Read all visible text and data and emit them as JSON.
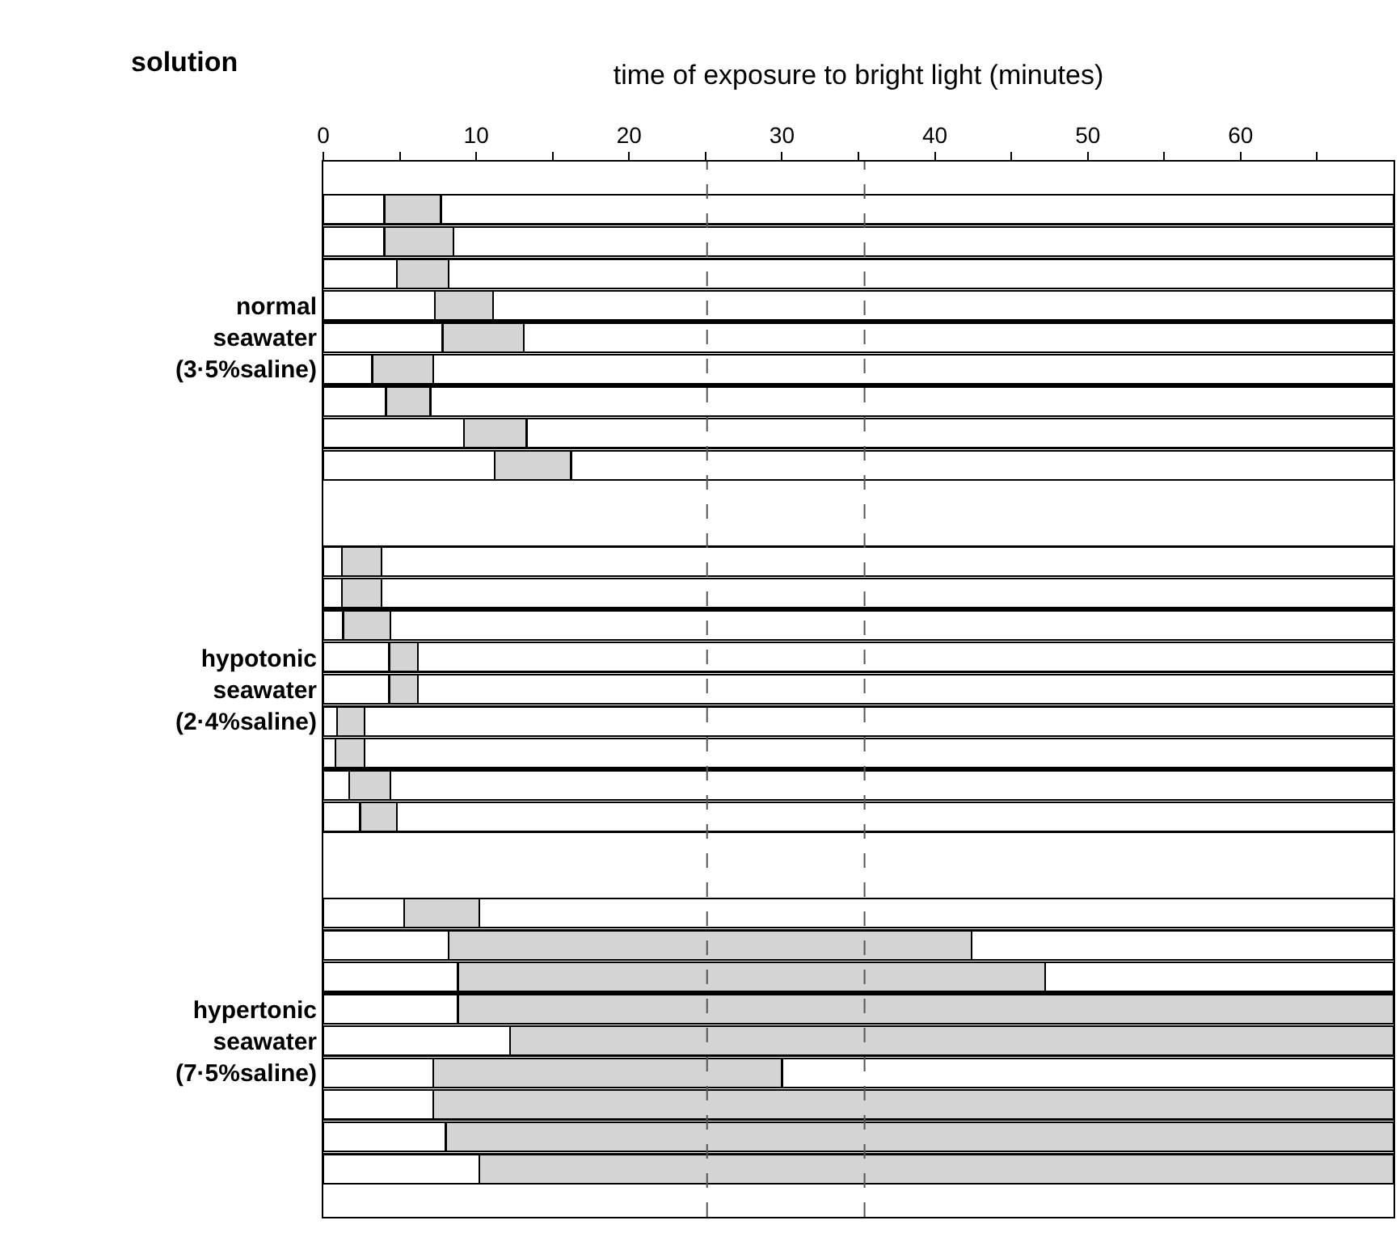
{
  "chart_data": {
    "type": "bar",
    "orientation": "horizontal",
    "stacked": true,
    "xlabel": "time of exposure to bright light (minutes)",
    "ylabel": "solution",
    "categories": [
      null,
      null,
      null,
      null,
      null,
      "normal\nseawater\n(3·5%saline)",
      null,
      null,
      null,
      null,
      null,
      null,
      null,
      null,
      null,
      null,
      "hypotonic\nseawater\n(2·4%saline)",
      null,
      null,
      null,
      null,
      null,
      null,
      null,
      null,
      null,
      null,
      "hypertonic\nseawater\n(7·5%saline)",
      null,
      null,
      null,
      null,
      null
    ],
    "series": [
      {
        "color": "#ffffff",
        "values": [
          null,
          4.0,
          4.0,
          4.8,
          7.3,
          7.8,
          3.2,
          4.1,
          9.2,
          11.2,
          null,
          null,
          1.2,
          1.2,
          1.3,
          4.3,
          4.3,
          0.9,
          0.8,
          1.7,
          2.4,
          null,
          null,
          5.3,
          8.2,
          8.8,
          8.8,
          12.2,
          7.2,
          7.2,
          8.0,
          10.2,
          null
        ]
      },
      {
        "color": "#d4d4d4",
        "values": [
          null,
          3.7,
          4.5,
          3.4,
          3.8,
          5.3,
          4.0,
          2.9,
          4.1,
          5.0,
          null,
          null,
          2.6,
          2.6,
          3.1,
          1.9,
          1.9,
          1.8,
          1.9,
          2.7,
          2.4,
          null,
          null,
          4.9,
          34.2,
          38.4,
          61.2,
          57.8,
          22.8,
          62.8,
          62.0,
          59.8,
          null
        ]
      },
      {
        "color": "#ffffff",
        "values": [
          null,
          62.3,
          61.5,
          61.8,
          58.9,
          56.9,
          62.8,
          63.0,
          56.7,
          53.8,
          null,
          null,
          66.2,
          66.2,
          65.6,
          63.8,
          63.8,
          67.3,
          67.3,
          65.6,
          65.2,
          null,
          null,
          59.8,
          27.6,
          22.8,
          null,
          null,
          40.0,
          null,
          null,
          null,
          null
        ]
      }
    ],
    "xlim": [
      0,
      70
    ],
    "xticks": [
      0,
      {
        "value": 5,
        "label": null
      },
      10,
      {
        "value": 15,
        "label": null
      },
      20,
      {
        "value": 25,
        "label": null
      },
      30,
      {
        "value": 35,
        "label": null
      },
      40,
      {
        "value": 45,
        "label": null
      },
      50,
      {
        "value": 55,
        "label": null
      },
      60,
      {
        "value": 65,
        "label": null
      }
    ],
    "ref_lines": [
      {
        "axis": "x",
        "value": 35.4,
        "color": "#555555",
        "line_style": "dashed"
      },
      {
        "axis": "x",
        "value": 25.1,
        "color": "#555555",
        "line_style": "dashed"
      }
    ]
  }
}
